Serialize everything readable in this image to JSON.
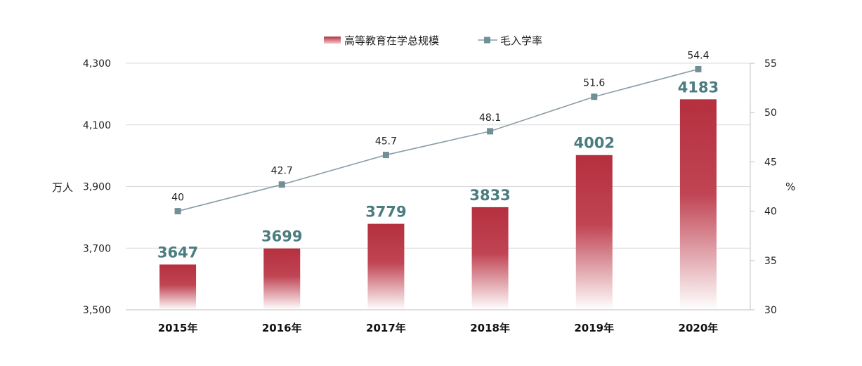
{
  "chart_data": {
    "type": "bar",
    "categories": [
      "2015年",
      "2016年",
      "2017年",
      "2018年",
      "2019年",
      "2020年"
    ],
    "series": [
      {
        "name": "高等教育在学总规模",
        "type": "bar",
        "axis": "left",
        "values": [
          3647,
          3699,
          3779,
          3833,
          4002,
          4183
        ],
        "data_labels": [
          "3647",
          "3699",
          "3779",
          "3833",
          "4002",
          "4183"
        ]
      },
      {
        "name": "毛入学率",
        "type": "line",
        "axis": "right",
        "values": [
          40,
          42.7,
          45.7,
          48.1,
          51.6,
          54.4
        ],
        "data_labels": [
          "40",
          "42.7",
          "45.7",
          "48.1",
          "51.6",
          "54.4"
        ]
      }
    ],
    "y_left": {
      "label": "万人",
      "ylim": [
        3500,
        4300
      ],
      "ticks": [
        3500,
        3700,
        3900,
        4100,
        4300
      ],
      "tick_labels": [
        "3,500",
        "3,700",
        "3,900",
        "4,100",
        "4,300"
      ]
    },
    "y_right": {
      "label": "%",
      "ylim": [
        30,
        55
      ],
      "ticks": [
        30,
        35,
        40,
        45,
        50,
        55
      ],
      "tick_labels": [
        "30",
        "35",
        "40",
        "45",
        "50",
        "55"
      ]
    },
    "legend": {
      "position": "top-center"
    },
    "grid": "horizontal",
    "colors": {
      "bar": "#b5303f",
      "line": "#8a9ea6",
      "marker": "#708f96",
      "bar_label": "#4a7c80",
      "grid": "#d9d9d9"
    }
  }
}
